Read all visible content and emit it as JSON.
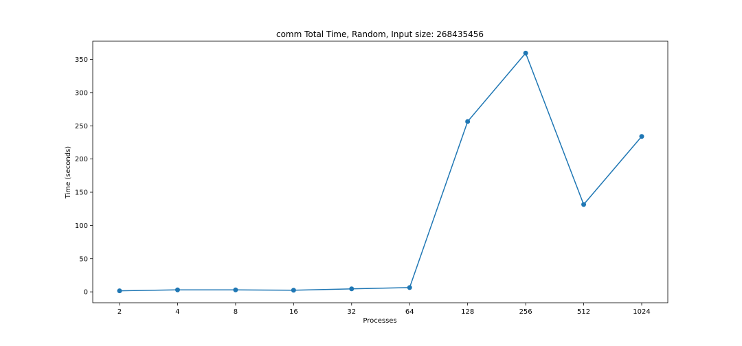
{
  "chart_data": {
    "type": "line",
    "title": "comm Total Time, Random, Input size: 268435456",
    "xlabel": "Processes",
    "ylabel": "Time (seconds)",
    "categories": [
      "2",
      "4",
      "8",
      "16",
      "32",
      "64",
      "128",
      "256",
      "512",
      "1024"
    ],
    "series": [
      {
        "values": [
          1.5,
          3.0,
          3.0,
          2.5,
          4.5,
          6.5,
          256.5,
          359.5,
          131.5,
          234.0
        ],
        "color": "#1f77b4",
        "marker": "circle"
      }
    ],
    "yticks": [
      0,
      50,
      100,
      150,
      200,
      250,
      300,
      350
    ],
    "ylim": [
      -16.4,
      377.4
    ],
    "grid": false,
    "legend": "none"
  }
}
